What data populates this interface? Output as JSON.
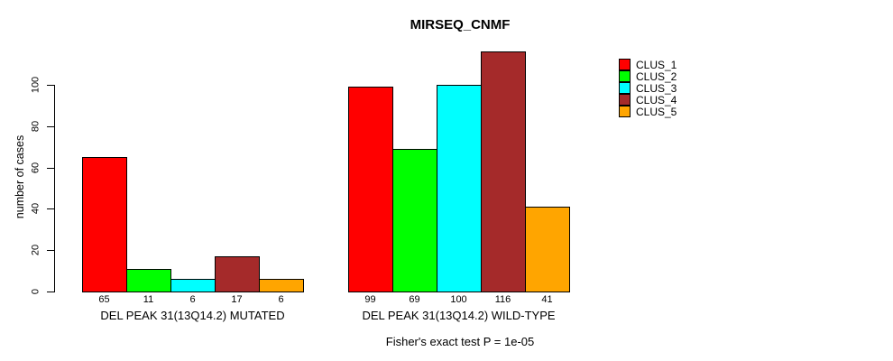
{
  "chart_data": {
    "type": "bar",
    "title": "MIRSEQ_CNMF",
    "ylabel": "number of cases",
    "xlabel": "",
    "ylim": [
      0,
      120
    ],
    "yticks": [
      0,
      20,
      40,
      60,
      80,
      100
    ],
    "grid": false,
    "legend_position": "right",
    "series": [
      "CLUS_1",
      "CLUS_2",
      "CLUS_3",
      "CLUS_4",
      "CLUS_5"
    ],
    "colors": [
      "#FF0000",
      "#00FF00",
      "#00FFFF",
      "#A52A2A",
      "#FFA500"
    ],
    "groups": [
      {
        "label": "DEL PEAK 31(13Q14.2) MUTATED",
        "values": [
          65,
          11,
          6,
          17,
          6
        ]
      },
      {
        "label": "DEL PEAK 31(13Q14.2) WILD-TYPE",
        "values": [
          99,
          69,
          100,
          116,
          41
        ]
      }
    ],
    "value_labels_shown": true,
    "annotation": "Fisher's exact test P = 1e-05"
  }
}
